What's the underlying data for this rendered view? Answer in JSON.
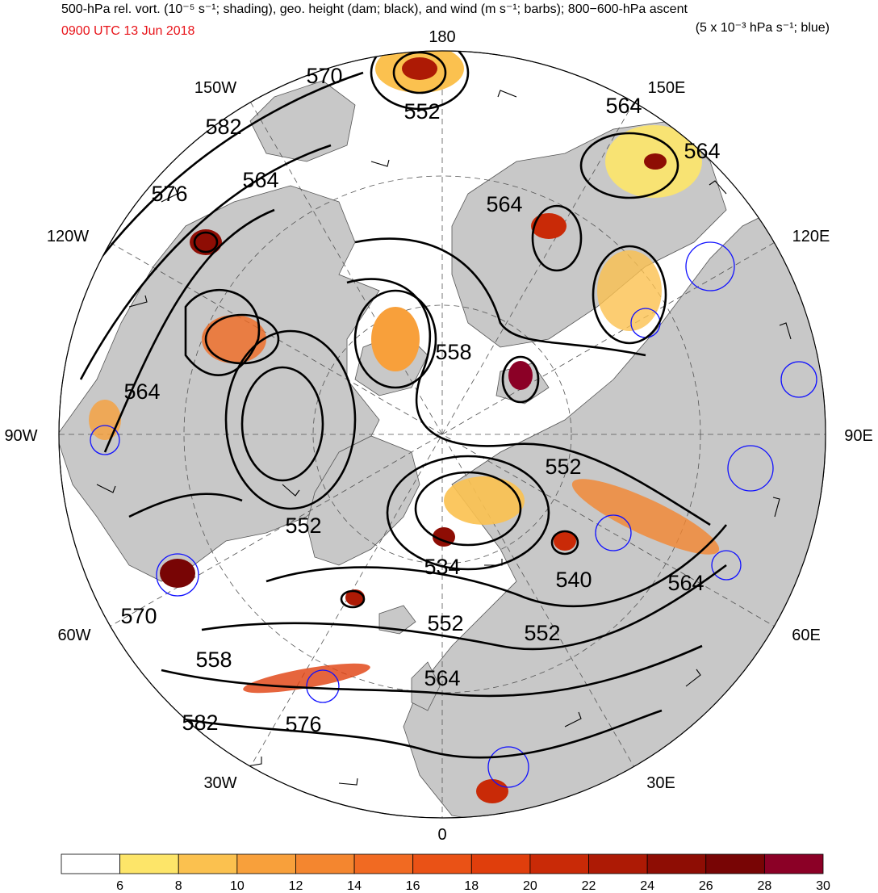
{
  "header": {
    "title_left": "500-hPa rel. vort. (10⁻⁵ s⁻¹; shading), geo. height (dam; black), and wind (m s⁻¹; barbs); 800−600-hPa ascent",
    "title_right": "",
    "subtitle_right": "(5 x 10⁻³ hPa s⁻¹; blue)",
    "datetime": "0900 UTC 13 Jun 2018",
    "datetime_color": "#e8141a"
  },
  "longitude_labels": {
    "lon_180": "180",
    "lon_150w": "150W",
    "lon_150e": "150E",
    "lon_120w": "120W",
    "lon_120e": "120E",
    "lon_90w": "90W",
    "lon_90e": "90E",
    "lon_60w": "60W",
    "lon_60e": "60E",
    "lon_30w": "30W",
    "lon_30e": "30E",
    "lon_0": "0"
  },
  "contour_labels": [
    {
      "id": "c570-top",
      "text": "570"
    },
    {
      "id": "c552-top",
      "text": "552"
    },
    {
      "id": "c564-ne1",
      "text": "564"
    },
    {
      "id": "c564-ne2",
      "text": "564"
    },
    {
      "id": "c582-nw",
      "text": "582"
    },
    {
      "id": "c564-nw",
      "text": "564"
    },
    {
      "id": "c576-nw",
      "text": "576"
    },
    {
      "id": "c564-cn",
      "text": "564"
    },
    {
      "id": "c558-c",
      "text": "558"
    },
    {
      "id": "c564-w",
      "text": "564"
    },
    {
      "id": "c552-e",
      "text": "552"
    },
    {
      "id": "c552-w",
      "text": "552"
    },
    {
      "id": "c534",
      "text": "534"
    },
    {
      "id": "c540",
      "text": "540"
    },
    {
      "id": "c564-se",
      "text": "564"
    },
    {
      "id": "c570-sw",
      "text": "570"
    },
    {
      "id": "c552-s",
      "text": "552"
    },
    {
      "id": "c552-s2",
      "text": "552"
    },
    {
      "id": "c558-sw",
      "text": "558"
    },
    {
      "id": "c564-s",
      "text": "564"
    },
    {
      "id": "c582-sw",
      "text": "582"
    },
    {
      "id": "c576-sw",
      "text": "576"
    }
  ],
  "colorbar": {
    "ticks": [
      "6",
      "8",
      "10",
      "12",
      "14",
      "16",
      "18",
      "20",
      "22",
      "24",
      "26",
      "28",
      "30"
    ],
    "colors": [
      "#ffffff",
      "#fde569",
      "#fbc14f",
      "#f8a03b",
      "#f4862f",
      "#f16a22",
      "#ea5216",
      "#e03e0c",
      "#c92a07",
      "#ad1a05",
      "#8e0d04",
      "#780505",
      "#8b0026"
    ]
  },
  "colors": {
    "land": "#c8c8c8",
    "ocean": "#ffffff",
    "height_contour": "#000000",
    "ascent_contour": "#1010ff"
  }
}
